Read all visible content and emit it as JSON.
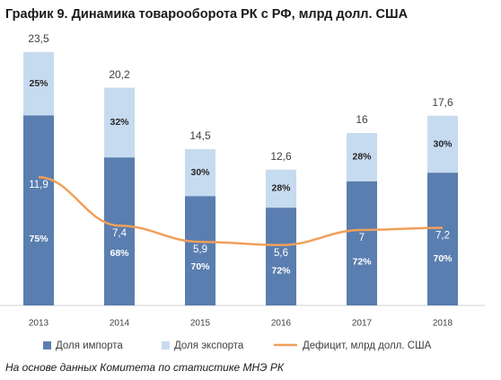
{
  "chart_data": {
    "type": "bar",
    "title": "График 9. Динамика товарооборота РК с РФ, млрд долл. США",
    "categories": [
      "2013",
      "2014",
      "2015",
      "2016",
      "2017",
      "2018"
    ],
    "series": [
      {
        "name": "Доля импорта",
        "color": "#5a7eaf",
        "values": [
          75,
          68,
          70,
          72,
          72,
          70
        ],
        "value_labels": [
          "75%",
          "68%",
          "70%",
          "72%",
          "72%",
          "70%"
        ]
      },
      {
        "name": "Доля экспорта",
        "color": "#c7dbf0",
        "values": [
          25,
          32,
          30,
          28,
          28,
          30
        ],
        "value_labels": [
          "25%",
          "32%",
          "30%",
          "28%",
          "28%",
          "30%"
        ]
      },
      {
        "name": "Дефицит, млрд долл. США",
        "type": "line",
        "color": "#f0a05a",
        "values": [
          11.9,
          7.4,
          5.9,
          5.6,
          7,
          7.2
        ],
        "value_labels": [
          "11,9",
          "7,4",
          "5,9",
          "5,6",
          "7",
          "7,2"
        ]
      }
    ],
    "totals": {
      "values": [
        23.5,
        20.2,
        14.5,
        12.6,
        16,
        17.6
      ],
      "value_labels": [
        "23,5",
        "20,2",
        "14,5",
        "12,6",
        "16",
        "17,6"
      ]
    },
    "ylim": [
      0,
      24
    ],
    "note": "На основе данных Комитета по статистике МНЭ РК"
  }
}
